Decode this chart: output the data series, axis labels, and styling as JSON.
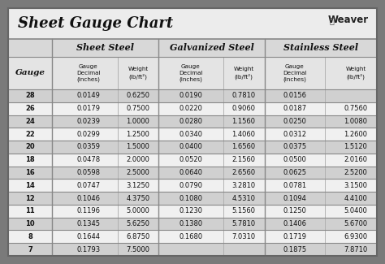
{
  "title": "Sheet Gauge Chart",
  "bg_outer": "#7a7a7a",
  "bg_inner": "#f2f2f2",
  "title_bg": "#ebebeb",
  "table_bg": "#ffffff",
  "header1_bg": "#d4d4d4",
  "header2_bg": "#e8e8e8",
  "row_alt1": "#d0d0d0",
  "row_alt2": "#f0f0f0",
  "border_color": "#888888",
  "text_dark": "#111111",
  "gauges": [
    28,
    26,
    24,
    22,
    20,
    18,
    16,
    14,
    12,
    11,
    10,
    8,
    7
  ],
  "sheet_steel_dec": [
    "0.0149",
    "0.0179",
    "0.0239",
    "0.0299",
    "0.0359",
    "0.0478",
    "0.0598",
    "0.0747",
    "0.1046",
    "0.1196",
    "0.1345",
    "0.1644",
    "0.1793"
  ],
  "sheet_steel_wt": [
    "0.6250",
    "0.7500",
    "1.0000",
    "1.2500",
    "1.5000",
    "2.0000",
    "2.5000",
    "3.1250",
    "4.3750",
    "5.0000",
    "5.6250",
    "6.8750",
    "7.5000"
  ],
  "galvanized_dec": [
    "0.0190",
    "0.0220",
    "0.0280",
    "0.0340",
    "0.0400",
    "0.0520",
    "0.0640",
    "0.0790",
    "0.1080",
    "0.1230",
    "0.1380",
    "0.1680",
    ""
  ],
  "galvanized_wt": [
    "0.7810",
    "0.9060",
    "1.1560",
    "1.4060",
    "1.6560",
    "2.1560",
    "2.6560",
    "3.2810",
    "4.5310",
    "5.1560",
    "5.7810",
    "7.0310",
    ""
  ],
  "stainless_dec": [
    "0.0156",
    "0.0187",
    "0.0250",
    "0.0312",
    "0.0375",
    "0.0500",
    "0.0625",
    "0.0781",
    "0.1094",
    "0.1250",
    "0.1406",
    "0.1719",
    "0.1875"
  ],
  "stainless_wt": [
    "",
    "0.7560",
    "1.0080",
    "1.2600",
    "1.5120",
    "2.0160",
    "2.5200",
    "3.1500",
    "4.4100",
    "5.0400",
    "5.6700",
    "6.9300",
    "7.8710"
  ]
}
